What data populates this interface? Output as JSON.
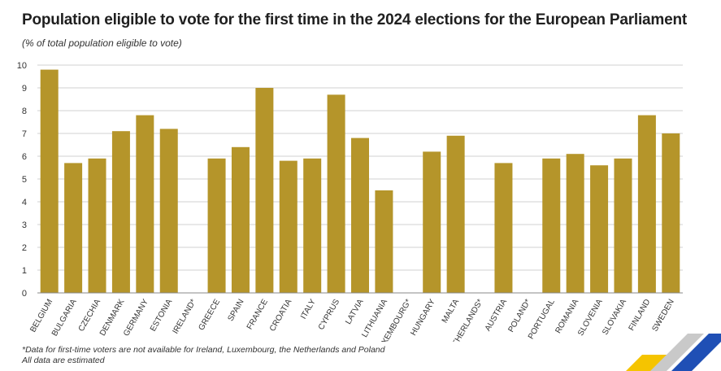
{
  "title": "Population eligible to vote for the first time in the 2024 elections for the European Parliament",
  "subtitle": "(% of total population eligible to vote)",
  "footnotes": [
    "*Data for first-time voters are not available for Ireland, Luxembourg, the Netherlands and Poland",
    "All data are estimated"
  ],
  "colors": {
    "bar": "#b5952a",
    "grid": "#d0d0d0",
    "text": "#333333",
    "logo_yellow": "#f5c400",
    "logo_blue": "#1f4fb5",
    "logo_grey": "#c9c9c9"
  },
  "chart_data": {
    "type": "bar",
    "title": "Population eligible to vote for the first time in the 2024 elections for the European Parliament",
    "ylabel": "(% of total population eligible to vote)",
    "xlabel": "",
    "ylim": [
      0,
      10
    ],
    "yticks": [
      0,
      1,
      2,
      3,
      4,
      5,
      6,
      7,
      8,
      9,
      10
    ],
    "grid": true,
    "categories": [
      "BELGIUM",
      "BULGARIA",
      "CZECHIA",
      "DENMARK",
      "GERMANY",
      "ESTONIA",
      "IRELAND*",
      "GREECE",
      "SPAIN",
      "FRANCE",
      "CROATIA",
      "ITALY",
      "CYPRUS",
      "LATVIA",
      "LITHUANIA",
      "LUXEMBOURG*",
      "HUNGARY",
      "MALTA",
      "NETHERLANDS*",
      "AUSTRIA",
      "POLAND*",
      "PORTUGAL",
      "ROMANIA",
      "SLOVENIA",
      "SLOVAKIA",
      "FINLAND",
      "SWEDEN"
    ],
    "values": [
      9.8,
      5.7,
      5.9,
      7.1,
      7.8,
      7.2,
      null,
      5.9,
      6.4,
      9.0,
      5.8,
      5.9,
      8.7,
      6.8,
      4.5,
      null,
      6.2,
      6.9,
      null,
      5.7,
      null,
      5.9,
      6.1,
      5.6,
      5.9,
      7.8,
      7.0
    ]
  }
}
